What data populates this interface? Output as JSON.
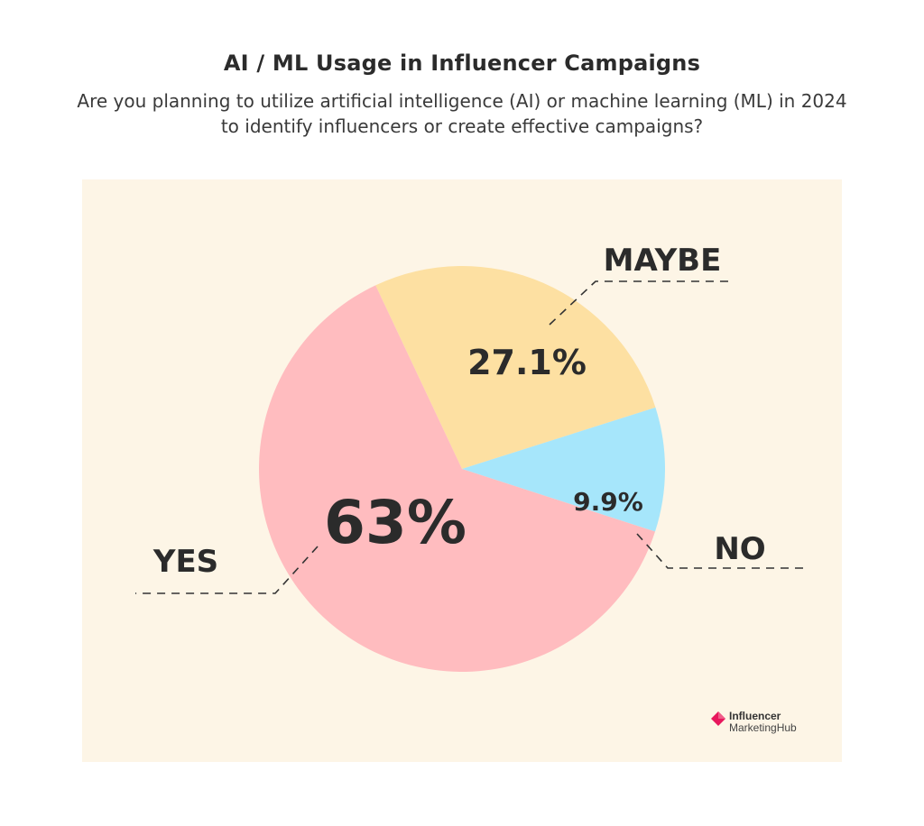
{
  "header": {
    "title": "AI / ML Usage in Influencer Campaigns",
    "subtitle": "Are you planning to utilize artificial intelligence (AI) or machine learning (ML) in 2024 to identify influencers or create effective campaigns?"
  },
  "chart_data": {
    "type": "pie",
    "title": "AI / ML Usage in Influencer Campaigns",
    "slices": [
      {
        "label": "YES",
        "value": 63,
        "value_label": "63%",
        "color": "#ffbcbf"
      },
      {
        "label": "MAYBE",
        "value": 27.1,
        "value_label": "27.1%",
        "color": "#fde0a2"
      },
      {
        "label": "NO",
        "value": 9.9,
        "value_label": "9.9%",
        "color": "#a6e6fb"
      }
    ],
    "legend": "none"
  },
  "colors": {
    "panel_background": "#fdf5e6",
    "text": "#2b2b2b",
    "logo_accent": "#e8175d"
  },
  "logo": {
    "line1": "Influencer",
    "line2": "MarketingHub",
    "icon": "diamond-logo-icon"
  }
}
